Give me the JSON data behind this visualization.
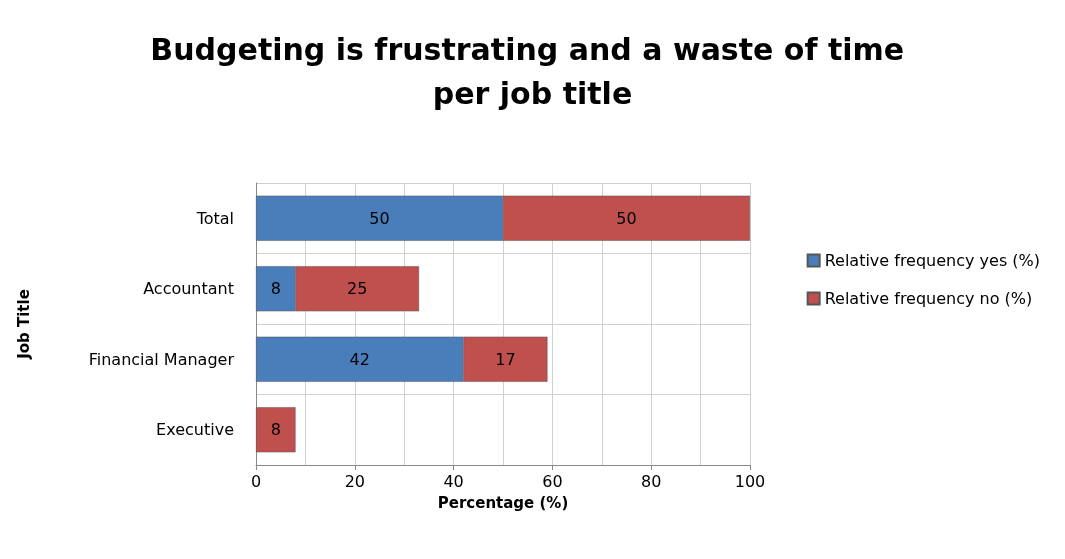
{
  "chart_data": {
    "type": "bar",
    "orientation": "horizontal",
    "stacked": true,
    "title": "Budgeting is frustrating and a waste of time per job title",
    "xlabel": "Percentage (%)",
    "ylabel": "Job Title",
    "categories": [
      "Total",
      "Accountant",
      "Financial Manager",
      "Executive"
    ],
    "series": [
      {
        "name": "Relative frequency yes (%)",
        "color": "#4a7ebb",
        "values": [
          50,
          8,
          42,
          null
        ]
      },
      {
        "name": "Relative frequency no (%)",
        "color": "#c0504d",
        "values": [
          50,
          25,
          17,
          8
        ]
      }
    ],
    "xlim": [
      0,
      100
    ],
    "xticks": [
      0,
      20,
      40,
      60,
      80,
      100
    ],
    "grid": true,
    "legend": "right",
    "data_labels": true
  }
}
